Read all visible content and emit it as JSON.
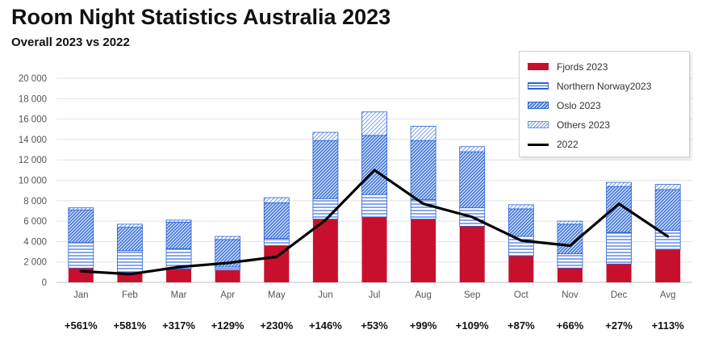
{
  "title": "Room Night Statistics Australia 2023",
  "subtitle": "Overall 2023 vs 2022",
  "colors": {
    "fjords": "#c8102e",
    "blue": "#2a62d6",
    "line2022": "#000000"
  },
  "chart_data": {
    "type": "bar",
    "stacked": true,
    "categories": [
      "Jan",
      "Feb",
      "Mar",
      "Apr",
      "May",
      "Jun",
      "Jul",
      "Aug",
      "Sep",
      "Oct",
      "Nov",
      "Dec",
      "Avg"
    ],
    "ylim": [
      0,
      20000
    ],
    "yticks": [
      "0",
      "2 000",
      "4 000",
      "6 000",
      "8 000",
      "10 000",
      "12 000",
      "14 000",
      "16 000",
      "18 000",
      "20 000"
    ],
    "grid": true,
    "legend_position": "top-right",
    "series": [
      {
        "name": "Fjords 2023",
        "pattern": "solid",
        "values": [
          1400,
          1000,
          1300,
          1200,
          3600,
          6200,
          6400,
          6200,
          5500,
          2600,
          1400,
          1800,
          3200
        ]
      },
      {
        "name": "Northern Norway2023",
        "pattern": "horizontal",
        "values": [
          2500,
          2100,
          2000,
          300,
          700,
          2000,
          2200,
          1900,
          1800,
          1900,
          1400,
          3100,
          1900
        ]
      },
      {
        "name": "Oslo 2023",
        "pattern": "dense",
        "values": [
          3200,
          2300,
          2600,
          2700,
          3500,
          5700,
          5800,
          5800,
          5500,
          2700,
          2900,
          4500,
          4000
        ]
      },
      {
        "name": "Others 2023",
        "pattern": "light",
        "values": [
          200,
          300,
          200,
          300,
          500,
          800,
          2300,
          1400,
          500,
          400,
          300,
          400,
          500
        ]
      }
    ],
    "line": {
      "name": "2022",
      "values": [
        1100,
        800,
        1500,
        1900,
        2500,
        6100,
        11000,
        7700,
        6400,
        4100,
        3600,
        7700,
        4500
      ]
    },
    "change_labels": [
      "+561%",
      "+581%",
      "+317%",
      "+129%",
      "+230%",
      "+146%",
      "+53%",
      "+99%",
      "+109%",
      "+87%",
      "+66%",
      "+27%",
      "+113%"
    ]
  }
}
